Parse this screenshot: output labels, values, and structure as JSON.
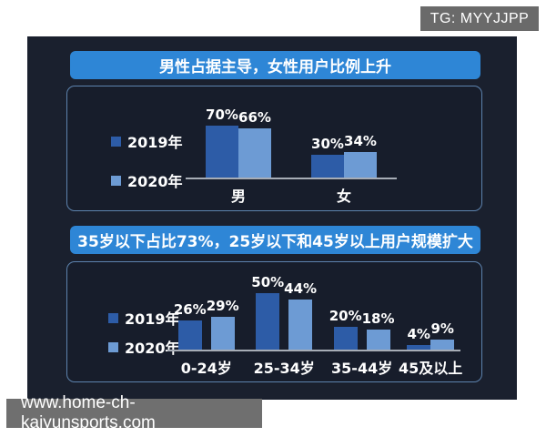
{
  "overlays": {
    "tg_badge": "TG: MYYJJPP",
    "url_badge": "www.home-ch-kaiyunsports.com"
  },
  "colors": {
    "banner": "#2e86d6",
    "series": [
      "#2d5ca7",
      "#6d9bd4"
    ],
    "board_bg": "#1a202e",
    "panel_bg": "#171d2b",
    "panel_border": "#5d83ae",
    "axis": "#a7adb6",
    "badge_bg": "#6f6f6f"
  },
  "chart_data": [
    {
      "type": "bar",
      "title": "男性占据主导，女性用户比例上升",
      "categories": [
        "男",
        "女"
      ],
      "series": [
        {
          "name": "2019年",
          "values": [
            70,
            30
          ]
        },
        {
          "name": "2020年",
          "values": [
            66,
            34
          ]
        }
      ],
      "unit": "%",
      "legend_position": "left",
      "grid": false,
      "ylim": [
        0,
        80
      ]
    },
    {
      "type": "bar",
      "title": "35岁以下占比73%，25岁以下和45岁以上用户规模扩大",
      "categories": [
        "0-24岁",
        "25-34岁",
        "35-44岁",
        "45及以上"
      ],
      "series": [
        {
          "name": "2019年",
          "values": [
            26,
            50,
            20,
            4
          ]
        },
        {
          "name": "2020年",
          "values": [
            29,
            44,
            18,
            9
          ]
        }
      ],
      "unit": "%",
      "legend_position": "left",
      "grid": false,
      "ylim": [
        0,
        60
      ]
    }
  ]
}
